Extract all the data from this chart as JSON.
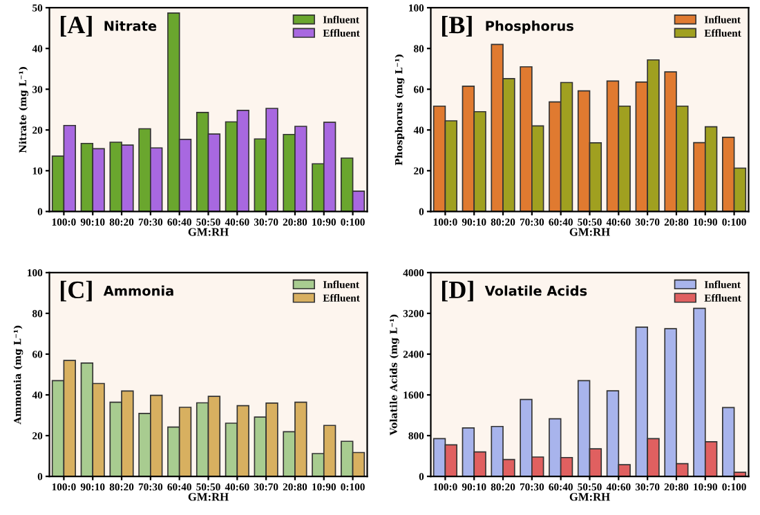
{
  "chart_data": [
    {
      "type": "bar",
      "title": "[A]",
      "subtitle": "Nitrate",
      "xlabel": "GM:RH",
      "ylabel": "Nitrate (mg L⁻¹)",
      "categories": [
        "100:0",
        "90:10",
        "80:20",
        "70:30",
        "60:40",
        "50:50",
        "40:60",
        "30:70",
        "20:80",
        "10:90",
        "0:100"
      ],
      "series": [
        {
          "name": "Influent",
          "color": "#6aa62e",
          "values": [
            13.6,
            16.7,
            17,
            20.3,
            48.7,
            24.3,
            22,
            17.8,
            18.9,
            11.7,
            13.1
          ]
        },
        {
          "name": "Effluent",
          "color": "#a868e0",
          "values": [
            21.1,
            15.4,
            16.3,
            15.6,
            17.7,
            19,
            24.8,
            25.3,
            20.9,
            21.9,
            5
          ]
        }
      ],
      "ylim": [
        0,
        50
      ],
      "yticks": [
        0,
        10,
        20,
        30,
        40,
        50
      ],
      "legend": "top right",
      "grid": false
    },
    {
      "type": "bar",
      "title": "[B]",
      "subtitle": "Phosphorus",
      "xlabel": "GM:RH",
      "ylabel": "Phosphorus (mg L⁻¹)",
      "categories": [
        "100:0",
        "90:10",
        "80:20",
        "70:30",
        "60:40",
        "50:50",
        "40:60",
        "30:70",
        "20:80",
        "10:90",
        "0:100"
      ],
      "series": [
        {
          "name": "Influent",
          "color": "#e07a30",
          "values": [
            51.7,
            61.5,
            82,
            71,
            53.8,
            59.2,
            64,
            63.5,
            68.5,
            33.8,
            36.4
          ]
        },
        {
          "name": "Effluent",
          "color": "#a0a020",
          "values": [
            44.5,
            49,
            65.2,
            42,
            63.3,
            33.7,
            51.7,
            74.4,
            51.7,
            41.6,
            21.3
          ]
        }
      ],
      "ylim": [
        0,
        100
      ],
      "yticks": [
        0,
        20,
        40,
        60,
        80,
        100
      ],
      "legend": "top right",
      "grid": false
    },
    {
      "type": "bar",
      "title": "[C]",
      "subtitle": "Ammonia",
      "xlabel": "GM:RH",
      "ylabel": "Ammonia (mg L⁻¹)",
      "categories": [
        "100:0",
        "90:10",
        "80:20",
        "70:30",
        "60:40",
        "50:50",
        "40:60",
        "30:70",
        "20:80",
        "10:90",
        "0:100"
      ],
      "series": [
        {
          "name": "Influent",
          "color": "#a8cc90",
          "values": [
            47,
            55.6,
            36.4,
            30.9,
            24.2,
            36.1,
            26.1,
            29.1,
            21.9,
            11.2,
            17.2
          ]
        },
        {
          "name": "Effluent",
          "color": "#d8b060",
          "values": [
            56.9,
            45.6,
            41.9,
            39.8,
            33.9,
            39.3,
            34.7,
            36,
            36.4,
            25,
            11.7
          ]
        }
      ],
      "ylim": [
        0,
        100
      ],
      "yticks": [
        0,
        20,
        40,
        60,
        80,
        100
      ],
      "legend": "top right",
      "grid": false
    },
    {
      "type": "bar",
      "title": "[D]",
      "subtitle": "Volatile Acids",
      "xlabel": "GM:RH",
      "ylabel": "Volatile Acids (mg L⁻¹)",
      "categories": [
        "100:0",
        "90:10",
        "80:20",
        "70:30",
        "60:40",
        "50:50",
        "40:60",
        "30:70",
        "20:80",
        "10:90",
        "0:100"
      ],
      "series": [
        {
          "name": "Influent",
          "color": "#a8b4ec",
          "values": [
            740,
            950,
            980,
            1510,
            1130,
            1880,
            1680,
            2930,
            2900,
            3300,
            1350
          ]
        },
        {
          "name": "Effluent",
          "color": "#e06060",
          "values": [
            620,
            480,
            330,
            380,
            370,
            540,
            230,
            740,
            250,
            680,
            80
          ]
        }
      ],
      "ylim": [
        0,
        4000
      ],
      "yticks": [
        0,
        800,
        1600,
        2400,
        3200,
        4000
      ],
      "legend": "top right",
      "grid": false
    }
  ]
}
